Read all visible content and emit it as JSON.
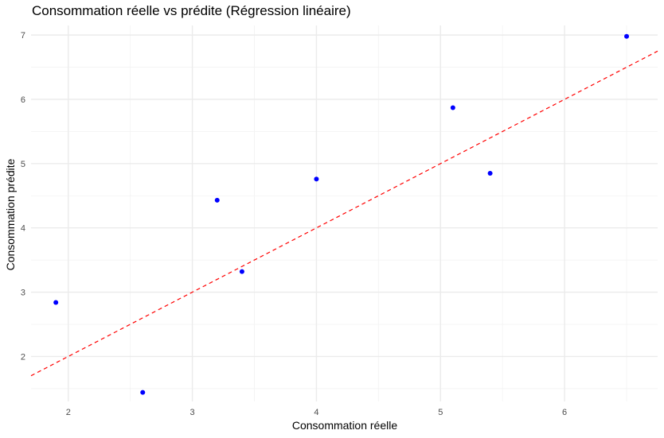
{
  "chart_data": {
    "type": "scatter",
    "title": "Consommation réelle vs prédite (Régression linéaire)",
    "xlabel": "Consommation réelle",
    "ylabel": "Consommation prédite",
    "xlim": [
      1.7,
      6.75
    ],
    "ylim": [
      1.3,
      7.15
    ],
    "x_ticks": [
      2,
      3,
      4,
      5,
      6
    ],
    "y_ticks": [
      2,
      3,
      4,
      5,
      6,
      7
    ],
    "grid": true,
    "series": [
      {
        "name": "points",
        "color": "#0000ff",
        "points": [
          {
            "x": 1.9,
            "y": 2.84
          },
          {
            "x": 2.6,
            "y": 1.44
          },
          {
            "x": 3.2,
            "y": 4.43
          },
          {
            "x": 3.4,
            "y": 3.32
          },
          {
            "x": 4.0,
            "y": 4.76
          },
          {
            "x": 5.1,
            "y": 5.87
          },
          {
            "x": 5.4,
            "y": 4.85
          },
          {
            "x": 6.5,
            "y": 6.98
          }
        ]
      }
    ],
    "reference_line": {
      "name": "y = x",
      "slope": 1,
      "intercept": 0,
      "color": "#ff0000",
      "style": "dashed"
    }
  }
}
